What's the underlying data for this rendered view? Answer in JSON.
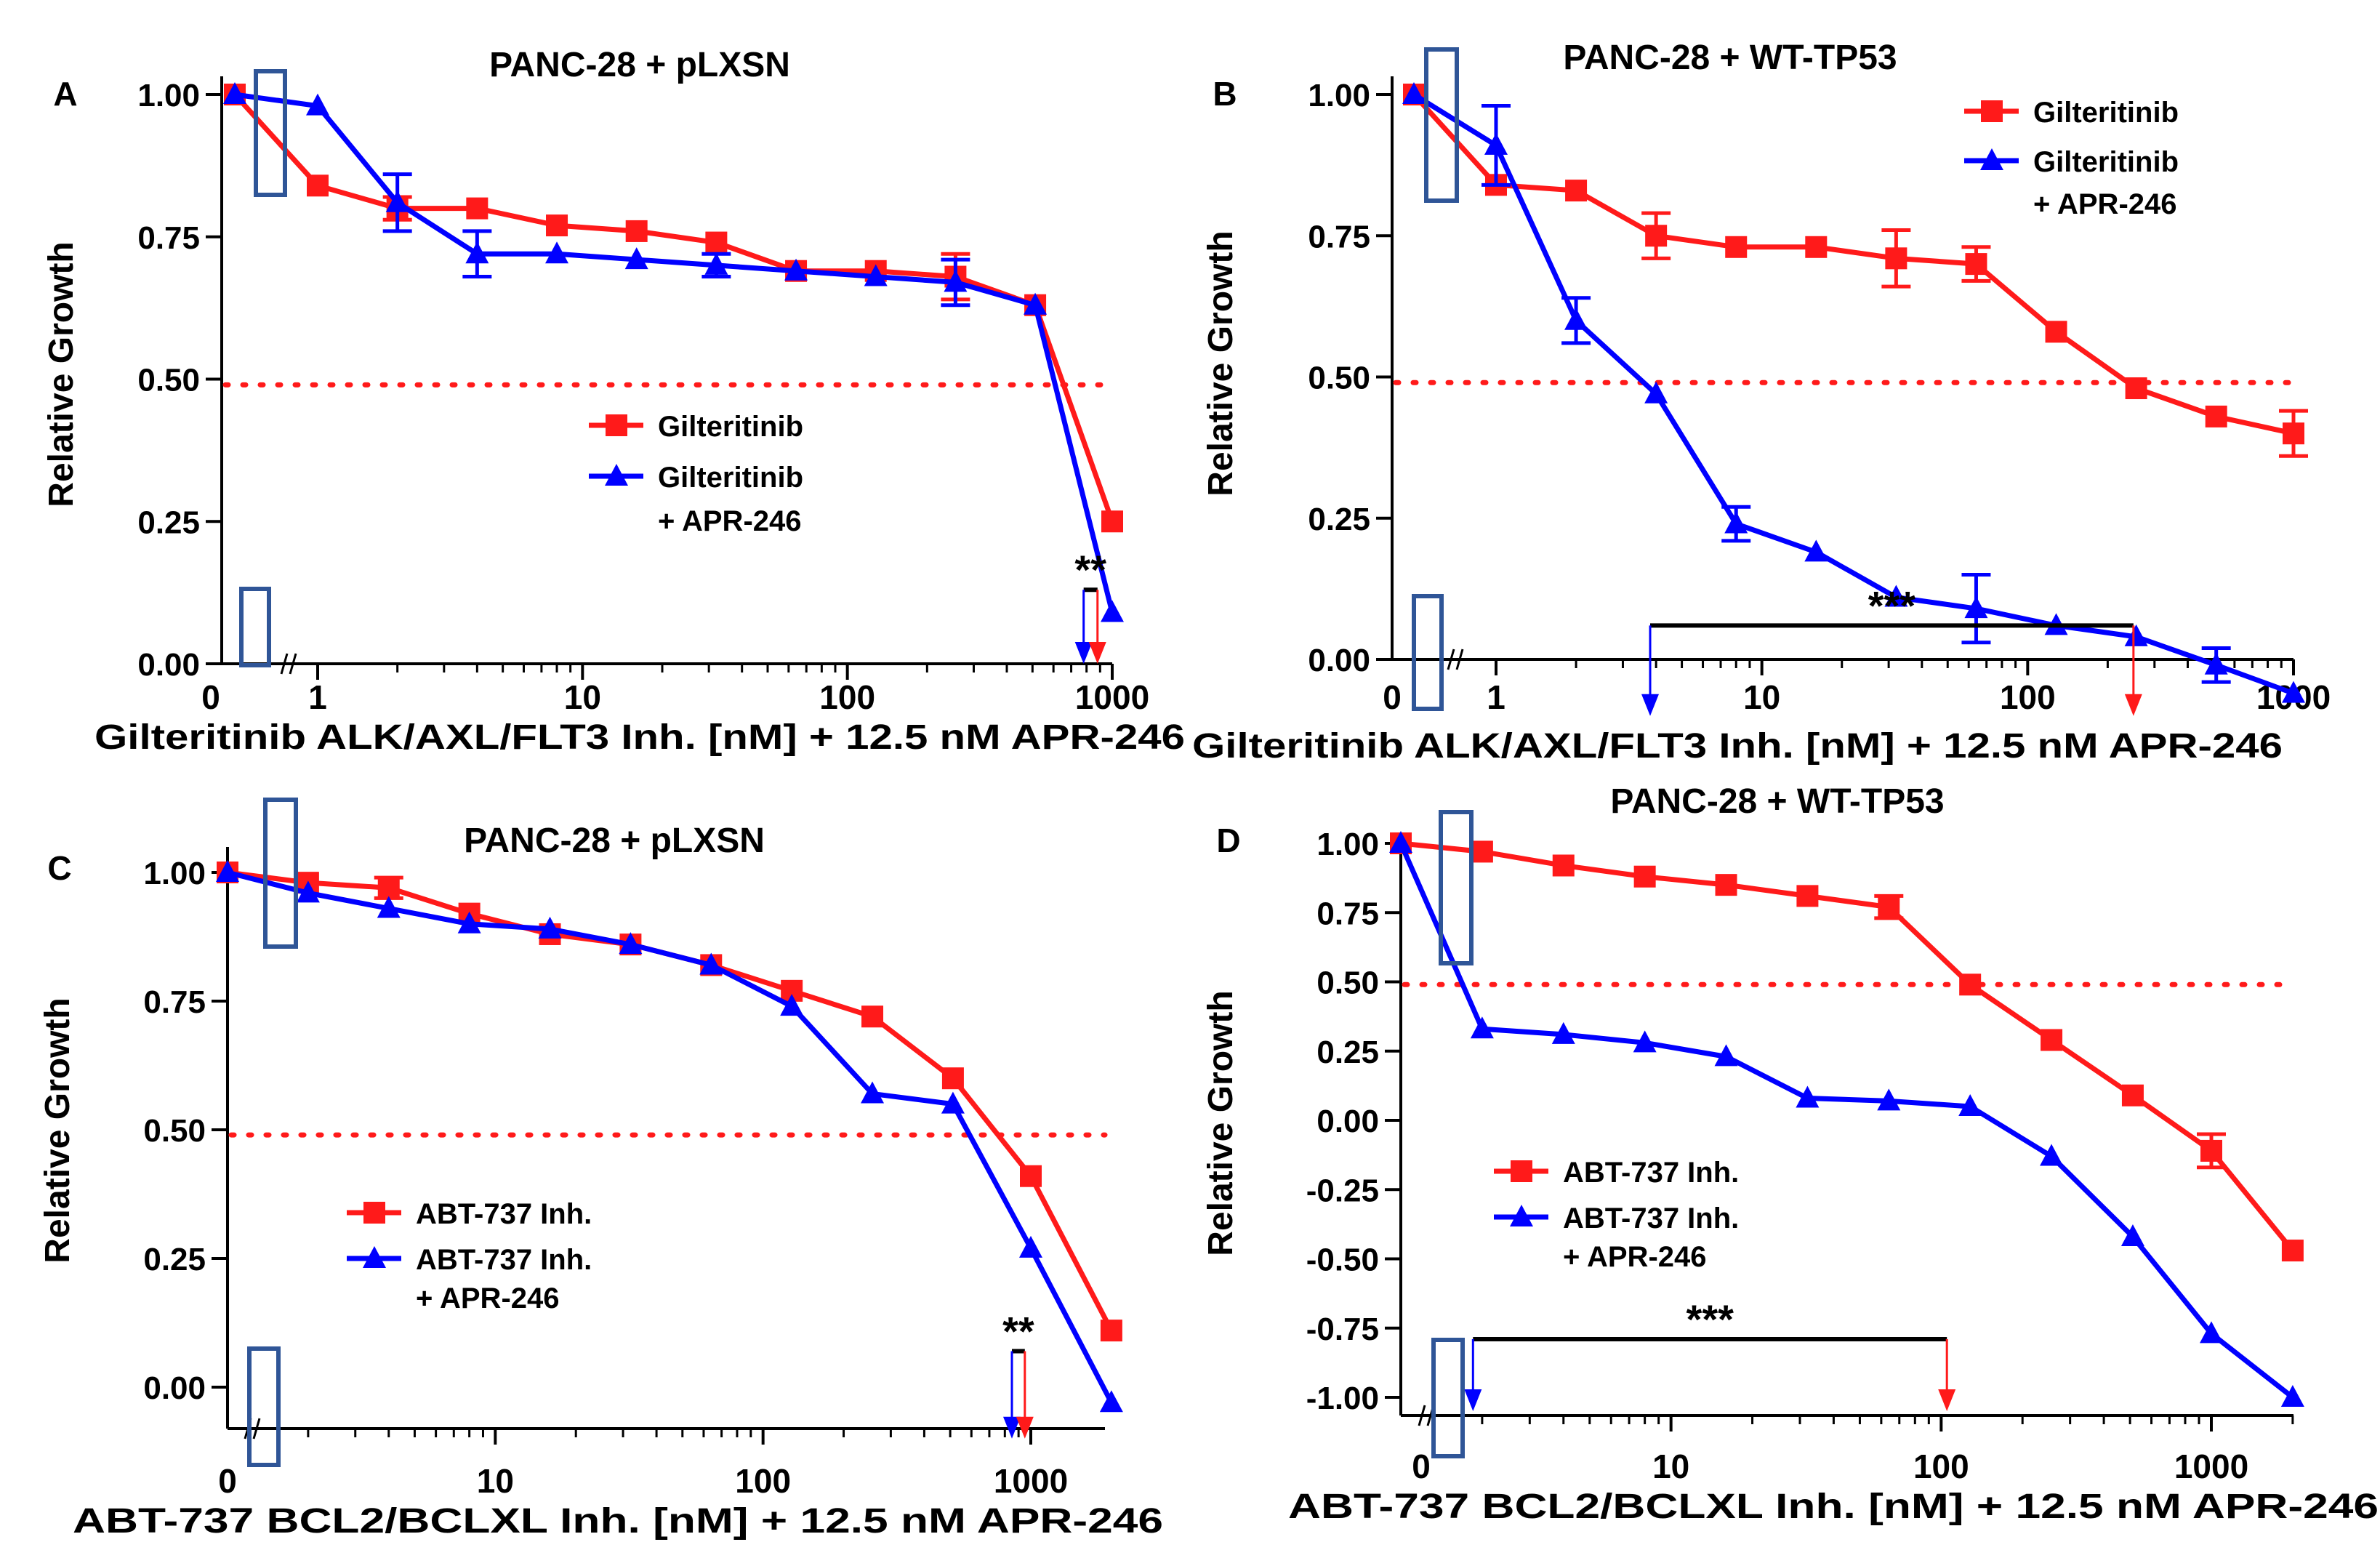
{
  "colors": {
    "red": "#ff1a1a",
    "blue": "#0000ff",
    "frame": "#2f5597",
    "black": "#000000"
  },
  "chart_data": [
    {
      "type": "line",
      "panel_label": "A",
      "title": "PANC-28 + pLXSN",
      "xlabel": "Gilteritinib ALK/AXL/FLT3 Inh. [nM] + 12.5 nM APR-246",
      "ylabel": "Relative Growth",
      "xscale": "log",
      "yticks": [
        0,
        0.25,
        0.5,
        0.75,
        1.0
      ],
      "ytick_labels": [
        "0.00",
        "0.25",
        "0.50",
        "0.75",
        "1.00"
      ],
      "xticks": [
        1,
        10,
        100,
        1000
      ],
      "xtick_labels": [
        "1",
        "10",
        "100",
        "1000"
      ],
      "xzero_label": "0",
      "ylim": [
        0,
        1.05
      ],
      "xlim_log": [
        -0.2,
        3
      ],
      "reference_line": 0.49,
      "legend": {
        "position": "middle-right",
        "entries": [
          "Gilteritinib",
          "Gilteritinib",
          "+ APR-246"
        ]
      },
      "annotation": {
        "text": "**",
        "x_blue": 780,
        "x_red": 880,
        "y_top": 0.13,
        "y_bottom": 0.0
      },
      "series": [
        {
          "name": "Gilteritinib",
          "color": "red",
          "marker": "square",
          "x": [
            0.5,
            1,
            2,
            4,
            8,
            16,
            32,
            64,
            128,
            256,
            512,
            1000
          ],
          "y": [
            1.0,
            0.84,
            0.8,
            0.8,
            0.77,
            0.76,
            0.74,
            0.69,
            0.69,
            0.68,
            0.63,
            0.25
          ],
          "err": [
            0,
            0,
            0.02,
            0,
            0,
            0,
            0,
            0,
            0,
            0.04,
            0,
            0
          ]
        },
        {
          "name": "Gilteritinib + APR-246",
          "color": "blue",
          "marker": "triangle",
          "x": [
            0.5,
            1,
            2,
            4,
            8,
            16,
            32,
            64,
            128,
            256,
            512,
            1000
          ],
          "y": [
            1.0,
            0.98,
            0.81,
            0.72,
            0.72,
            0.71,
            0.7,
            0.69,
            0.68,
            0.67,
            0.63,
            0.09
          ],
          "err": [
            0,
            0,
            0.05,
            0.04,
            0,
            0,
            0.02,
            0,
            0,
            0.04,
            0,
            0
          ]
        }
      ]
    },
    {
      "type": "line",
      "panel_label": "B",
      "title": "PANC-28 + WT-TP53",
      "xlabel": "Gilteritinib ALK/AXL/FLT3 Inh. [nM] + 12.5 nM APR-246",
      "ylabel": "Relative Growth",
      "xscale": "log",
      "yticks": [
        0,
        0.25,
        0.5,
        0.75,
        1.0
      ],
      "ytick_labels": [
        "0.00",
        "0.25",
        "0.50",
        "0.75",
        "1.00"
      ],
      "xticks": [
        1,
        10,
        100,
        1000
      ],
      "xtick_labels": [
        "1",
        "10",
        "100",
        "1000"
      ],
      "xzero_label": "0",
      "ylim": [
        -0.1,
        1.05
      ],
      "xlim_log": [
        -0.3,
        3
      ],
      "reference_line": 0.49,
      "legend": {
        "position": "top-right",
        "entries": [
          "Gilteritinib",
          "Gilteritinib",
          "+ APR-246"
        ]
      },
      "annotation": {
        "text": "***",
        "x_blue": 3.8,
        "x_red": 250,
        "y_top": 0.06,
        "y_bottom": -0.1
      },
      "series": [
        {
          "name": "Gilteritinib",
          "color": "red",
          "marker": "square",
          "x": [
            0.5,
            1,
            2,
            4,
            8,
            16,
            32,
            64,
            128,
            256,
            512,
            1000
          ],
          "y": [
            1.0,
            0.84,
            0.83,
            0.75,
            0.73,
            0.73,
            0.71,
            0.7,
            0.58,
            0.48,
            0.43,
            0.4
          ],
          "err": [
            0,
            0,
            0,
            0.04,
            0,
            0,
            0.05,
            0.03,
            0,
            0,
            0,
            0.04
          ]
        },
        {
          "name": "Gilteritinib + APR-246",
          "color": "blue",
          "marker": "triangle",
          "x": [
            0.5,
            1,
            2,
            4,
            8,
            16,
            32,
            64,
            128,
            256,
            512,
            1000
          ],
          "y": [
            1.0,
            0.91,
            0.6,
            0.47,
            0.24,
            0.19,
            0.11,
            0.09,
            0.06,
            0.04,
            -0.01,
            -0.06
          ],
          "err": [
            0,
            0.07,
            0.04,
            0,
            0.03,
            0,
            0,
            0.06,
            0,
            0,
            0.03,
            0
          ]
        }
      ]
    },
    {
      "type": "line",
      "panel_label": "C",
      "title": "PANC-28 + pLXSN",
      "xlabel": "ABT-737 BCL2/BCLXL Inh. [nM] + 12.5 nM APR-246",
      "ylabel": "Relative Growth",
      "xscale": "log",
      "yticks": [
        0,
        0.25,
        0.5,
        0.75,
        1.0
      ],
      "ytick_labels": [
        "0.00",
        "0.25",
        "0.50",
        "0.75",
        "1.00"
      ],
      "xticks": [
        10,
        100,
        1000
      ],
      "xtick_labels": [
        "10",
        "100",
        "1000"
      ],
      "xzero_label": "0",
      "ylim": [
        -0.1,
        1.05
      ],
      "xlim_log": [
        0,
        3.35
      ],
      "reference_line": 0.49,
      "legend": {
        "position": "bottom-middle",
        "entries": [
          "ABT-737 Inh.",
          "ABT-737 Inh.",
          "+ APR-246"
        ]
      },
      "annotation": {
        "text": "**",
        "x_blue": 850,
        "x_red": 950,
        "y_top": 0.07,
        "y_bottom": -0.1
      },
      "series": [
        {
          "name": "ABT-737 Inh.",
          "color": "red",
          "marker": "square",
          "x": [
            1,
            2,
            4,
            8,
            16,
            32,
            64,
            128,
            256,
            512,
            1000,
            2000
          ],
          "y": [
            1.0,
            0.98,
            0.97,
            0.92,
            0.88,
            0.86,
            0.82,
            0.77,
            0.72,
            0.6,
            0.41,
            0.11
          ],
          "err": [
            0,
            0,
            0.02,
            0,
            0,
            0,
            0,
            0,
            0,
            0,
            0,
            0
          ]
        },
        {
          "name": "ABT-737 Inh. + APR-246",
          "color": "blue",
          "marker": "triangle",
          "x": [
            1,
            2,
            4,
            8,
            16,
            32,
            64,
            128,
            256,
            512,
            1000,
            2000
          ],
          "y": [
            1.0,
            0.96,
            0.93,
            0.9,
            0.89,
            0.86,
            0.82,
            0.74,
            0.57,
            0.55,
            0.27,
            -0.03
          ],
          "err": [
            0,
            0,
            0,
            0,
            0,
            0,
            0,
            0,
            0,
            0,
            0,
            0
          ]
        }
      ]
    },
    {
      "type": "line",
      "panel_label": "D",
      "title": "PANC-28 + WT-TP53",
      "xlabel": "ABT-737 BCL2/BCLXL Inh. [nM] + 12.5 nM APR-246",
      "ylabel": "Relative Growth",
      "xscale": "log",
      "yticks": [
        -1.0,
        -0.75,
        -0.5,
        -0.25,
        0,
        0.25,
        0.5,
        0.75,
        1.0
      ],
      "ytick_labels": [
        "-1.00",
        "-0.75",
        "-0.50",
        "-0.25",
        "0.00",
        "0.25",
        "0.50",
        "0.75",
        "1.00"
      ],
      "xticks": [
        10,
        100,
        1000
      ],
      "xtick_labels": [
        "10",
        "100",
        "1000"
      ],
      "xzero_label": "0",
      "ylim": [
        -1.05,
        1.05
      ],
      "xlim_log": [
        0,
        3.3
      ],
      "reference_line": 0.49,
      "legend": {
        "position": "bottom-middle",
        "entries": [
          "ABT-737 Inh.",
          "ABT-737 Inh.",
          "+ APR-246"
        ]
      },
      "annotation": {
        "text": "***",
        "x_blue": 1.85,
        "x_red": 105,
        "y_top": -0.79,
        "y_bottom": -1.05
      },
      "series": [
        {
          "name": "ABT-737 Inh.",
          "color": "red",
          "marker": "square",
          "x": [
            1,
            2,
            4,
            8,
            16,
            32,
            64,
            128,
            256,
            512,
            1000,
            2000
          ],
          "y": [
            1.0,
            0.97,
            0.92,
            0.88,
            0.85,
            0.81,
            0.77,
            0.49,
            0.29,
            0.09,
            -0.11,
            -0.47
          ],
          "err": [
            0,
            0,
            0,
            0,
            0,
            0,
            0.04,
            0,
            0,
            0,
            0.06,
            0
          ]
        },
        {
          "name": "ABT-737 Inh. + APR-246",
          "color": "blue",
          "marker": "triangle",
          "x": [
            1,
            2,
            4,
            8,
            16,
            32,
            64,
            128,
            256,
            512,
            1000,
            2000
          ],
          "y": [
            1.0,
            0.33,
            0.31,
            0.28,
            0.23,
            0.08,
            0.07,
            0.05,
            -0.13,
            -0.42,
            -0.77,
            -1.0
          ],
          "err": [
            0,
            0,
            0,
            0,
            0,
            0,
            0,
            0,
            0,
            0,
            0,
            0
          ]
        }
      ]
    }
  ]
}
